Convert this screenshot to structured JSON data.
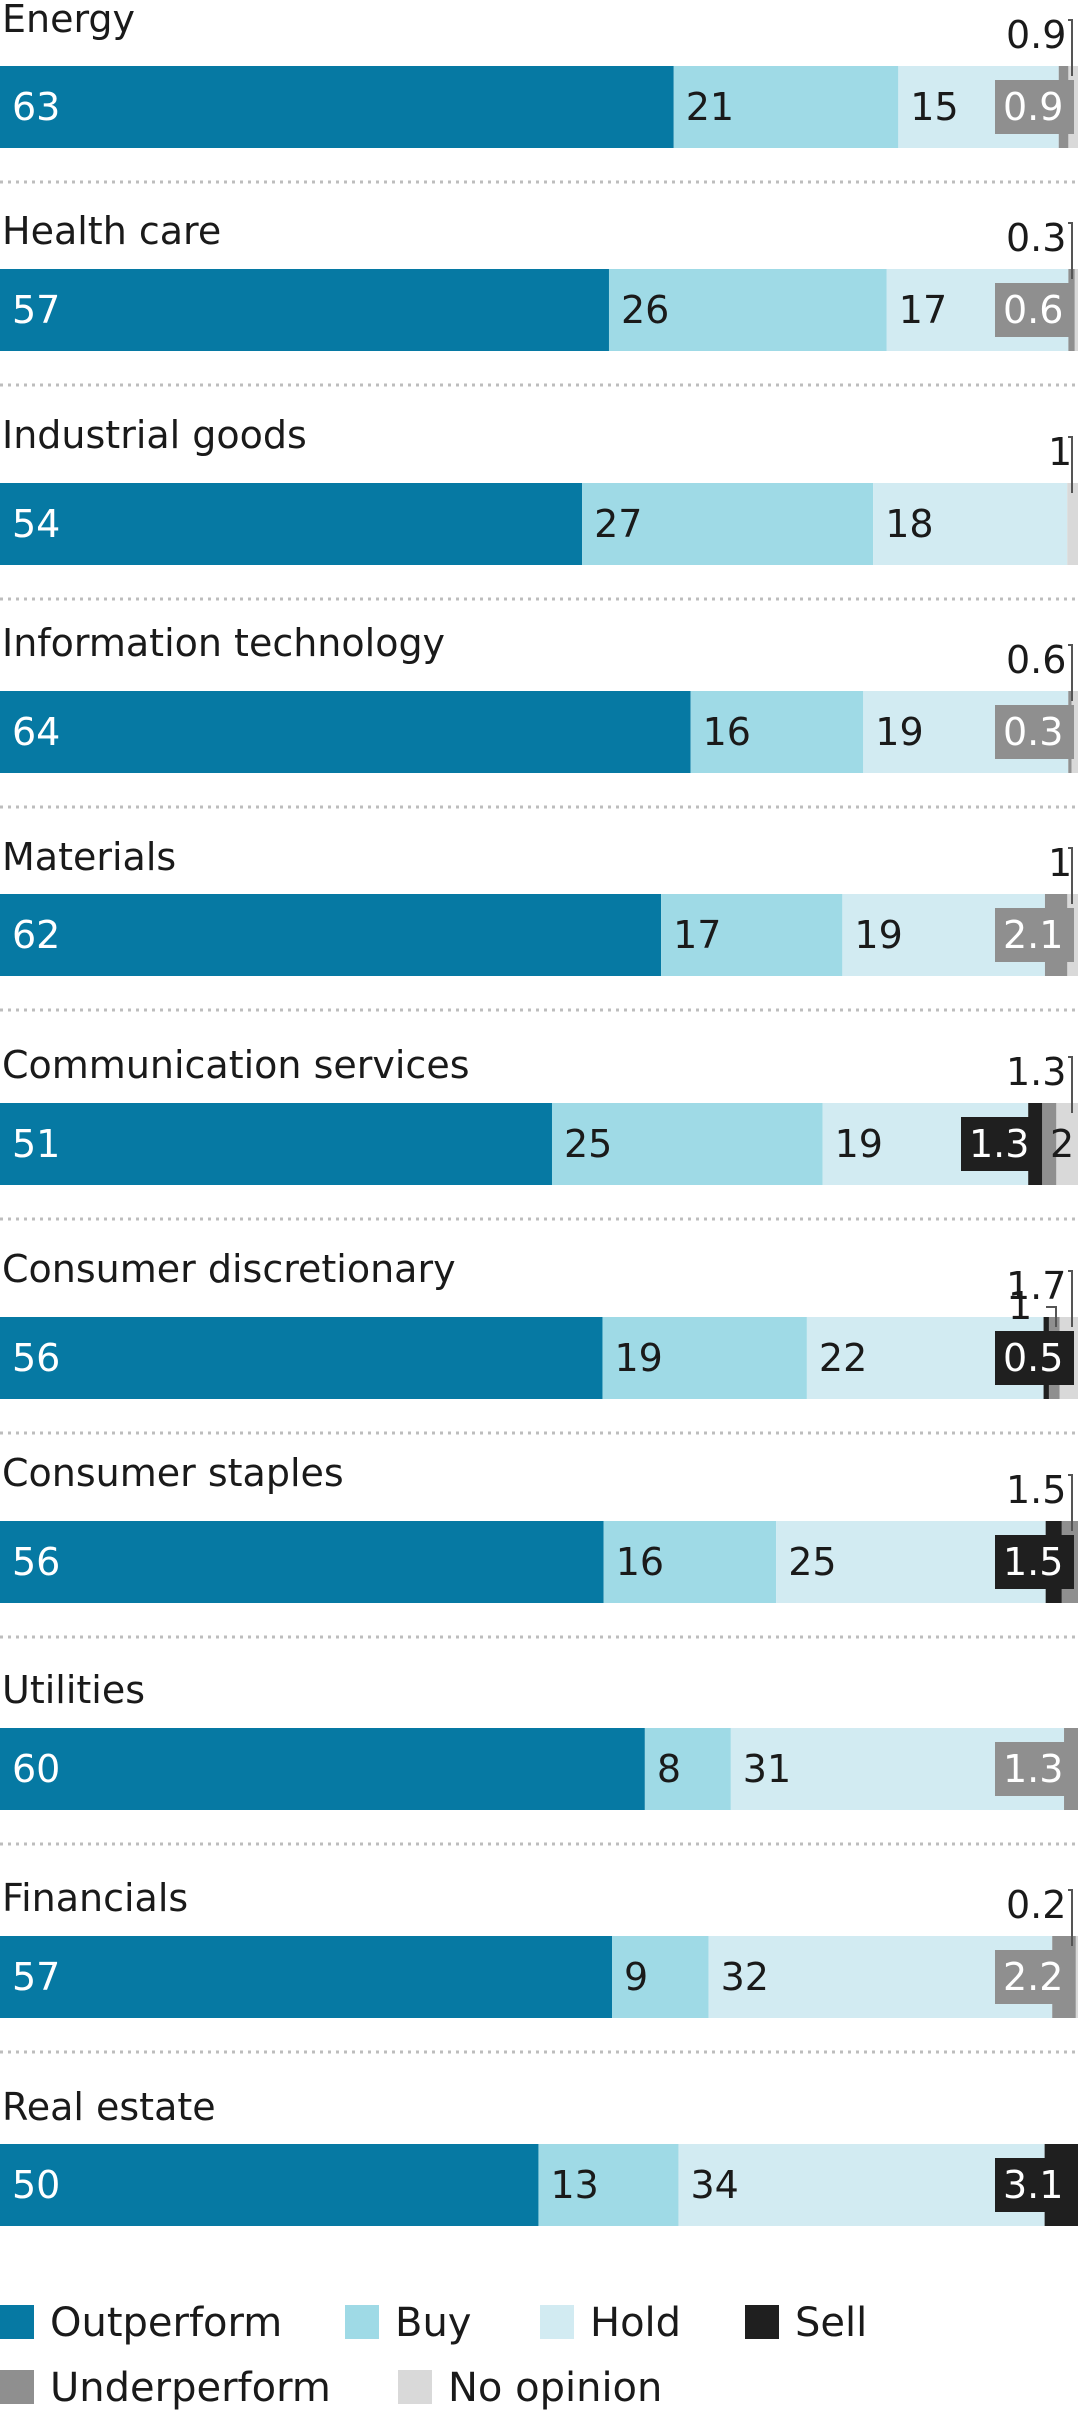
{
  "chart_data": {
    "type": "bar",
    "orientation": "horizontal",
    "stacked": true,
    "unit": "%",
    "categories": [
      "Energy",
      "Health care",
      "Industrial goods",
      "Information technology",
      "Materials",
      "Communication services",
      "Consumer discretionary",
      "Consumer staples",
      "Utilities",
      "Financials",
      "Real estate"
    ],
    "series": [
      {
        "name": "Outperform",
        "color": "#0679a3",
        "values": [
          63,
          57,
          54,
          64,
          62,
          51,
          56,
          56,
          60,
          57,
          50
        ]
      },
      {
        "name": "Buy",
        "color": "#9fdae6",
        "values": [
          21,
          26,
          27,
          16,
          17,
          25,
          19,
          16,
          8,
          9,
          13
        ]
      },
      {
        "name": "Hold",
        "color": "#d2ebf2",
        "values": [
          15,
          17,
          18,
          19,
          19,
          19,
          22,
          25,
          31,
          32,
          34
        ]
      },
      {
        "name": "Sell",
        "color": "#1f1f1f",
        "values": [
          0,
          0,
          0,
          0,
          0,
          1.3,
          0.5,
          1.5,
          0,
          0,
          3.1
        ]
      },
      {
        "name": "Underperform",
        "color": "#8f8f8f",
        "values": [
          0.9,
          0.6,
          0,
          0.3,
          2.1,
          1.3,
          1,
          1.5,
          1.3,
          2.2,
          0
        ]
      },
      {
        "name": "No opinion",
        "color": "#d9d9d9",
        "values": [
          0.9,
          0.3,
          1,
          0.6,
          1,
          2,
          1.7,
          0,
          0,
          0.2,
          0
        ]
      }
    ],
    "labels": [
      {
        "inside": [
          "63",
          "21",
          "15",
          "0.9"
        ],
        "callout": "0.9"
      },
      {
        "inside": [
          "57",
          "26",
          "17",
          "0.6"
        ],
        "callout": "0.3"
      },
      {
        "inside": [
          "54",
          "27",
          "18"
        ],
        "callout": "1"
      },
      {
        "inside": [
          "64",
          "16",
          "19",
          "0.3"
        ],
        "callout": "0.6"
      },
      {
        "inside": [
          "62",
          "17",
          "19",
          "2.1"
        ],
        "callout": "1"
      },
      {
        "inside": [
          "51",
          "25",
          "19",
          "1.3",
          "2"
        ],
        "callout": "1.3"
      },
      {
        "inside": [
          "56",
          "19",
          "22",
          "0.5"
        ],
        "callout": "1.7",
        "callout2": "1"
      },
      {
        "inside": [
          "56",
          "16",
          "25",
          "1.5"
        ],
        "callout": "1.5"
      },
      {
        "inside": [
          "60",
          "8",
          "31",
          "1.3"
        ]
      },
      {
        "inside": [
          "57",
          "9",
          "32",
          "2.2"
        ],
        "callout": "0.2"
      },
      {
        "inside": [
          "50",
          "13",
          "34",
          "3.1"
        ]
      }
    ],
    "legend_position": "bottom"
  }
}
